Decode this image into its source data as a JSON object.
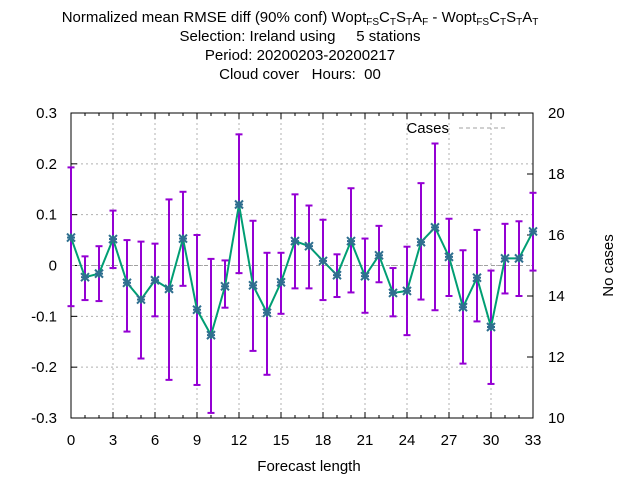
{
  "title": {
    "line1_prefix": "Normalized mean RMSE diff (90% conf) Wopt",
    "line1_parts": [
      {
        "sub": "FS"
      },
      {
        "text": "C"
      },
      {
        "sub": "T"
      },
      {
        "text": "S"
      },
      {
        "sub": "T"
      },
      {
        "text": "A"
      },
      {
        "sub": "F"
      },
      {
        "text": " - Wopt"
      },
      {
        "sub": "FS"
      },
      {
        "text": "C"
      },
      {
        "sub": "T"
      },
      {
        "text": "S"
      },
      {
        "sub": "T"
      },
      {
        "text": "A"
      },
      {
        "sub": "T"
      }
    ],
    "line2": "Selection: Ireland using     5 stations",
    "line3": "Period: 20200203-20200217",
    "line4": "Cloud cover   Hours:  00"
  },
  "chart_data": {
    "type": "line",
    "xlabel": "Forecast length",
    "ylabel_left": "",
    "ylabel_right": "No cases",
    "xlim": [
      0,
      33
    ],
    "ylim": [
      -0.3,
      0.3
    ],
    "y2lim": [
      10,
      20
    ],
    "xticks": [
      0,
      3,
      6,
      9,
      12,
      15,
      18,
      21,
      24,
      27,
      30,
      33
    ],
    "yticks": [
      -0.3,
      -0.2,
      -0.1,
      0,
      0.1,
      0.2,
      0.3
    ],
    "ytick_labels": [
      "-0.3",
      "-0.2",
      "-0.1",
      "0",
      "0.1",
      "0.2",
      "0.3"
    ],
    "y2ticks": [
      10,
      12,
      14,
      16,
      18,
      20
    ],
    "grid": true,
    "legend": {
      "position": "top-right",
      "entries": [
        "Cases"
      ]
    },
    "series": [
      {
        "name": "",
        "type": "errorbar-line",
        "x": [
          0,
          1,
          2,
          3,
          4,
          5,
          6,
          7,
          8,
          9,
          10,
          11,
          12,
          13,
          14,
          15,
          16,
          17,
          18,
          19,
          20,
          21,
          22,
          23,
          24,
          25,
          26,
          27,
          28,
          29,
          30,
          31,
          32,
          33
        ],
        "values": [
          0.055,
          -0.023,
          -0.016,
          0.052,
          -0.034,
          -0.067,
          -0.029,
          -0.046,
          0.053,
          -0.087,
          -0.137,
          -0.041,
          0.12,
          -0.039,
          -0.093,
          -0.033,
          0.048,
          0.038,
          0.009,
          -0.019,
          0.048,
          -0.021,
          0.02,
          -0.054,
          -0.05,
          0.046,
          0.075,
          0.017,
          -0.082,
          -0.024,
          -0.121,
          0.014,
          0.014,
          0.067
        ],
        "lower": [
          -0.08,
          -0.068,
          -0.07,
          -0.005,
          -0.13,
          -0.183,
          -0.1,
          -0.225,
          -0.04,
          -0.235,
          -0.29,
          -0.083,
          -0.015,
          -0.168,
          -0.215,
          -0.095,
          -0.045,
          -0.045,
          -0.068,
          -0.062,
          -0.053,
          -0.093,
          -0.033,
          -0.1,
          -0.137,
          -0.067,
          -0.088,
          -0.06,
          -0.193,
          -0.11,
          -0.233,
          -0.055,
          -0.06,
          -0.01
        ],
        "upper": [
          0.193,
          0.018,
          0.038,
          0.108,
          0.05,
          0.047,
          0.043,
          0.13,
          0.145,
          0.06,
          0.013,
          0.01,
          0.258,
          0.088,
          0.025,
          0.025,
          0.14,
          0.118,
          0.09,
          0.022,
          0.152,
          0.053,
          0.078,
          -0.005,
          0.037,
          0.162,
          0.24,
          0.092,
          0.03,
          0.07,
          -0.01,
          0.082,
          0.087,
          0.143
        ]
      },
      {
        "name": "Cases",
        "axis": "right",
        "values": [
          15,
          15,
          15,
          15,
          15,
          15,
          15,
          15,
          15,
          15,
          15,
          15,
          15,
          15,
          15,
          15,
          15,
          15,
          15,
          15,
          15,
          15,
          15,
          15,
          15,
          15,
          15,
          15,
          15,
          15,
          15,
          15,
          15,
          15
        ]
      }
    ]
  },
  "colors": {
    "line": "#009e73",
    "errorbar": "#9400d3",
    "marker": "#2f6f8f",
    "cases": "#a0a0a0",
    "grid": "#b0b0b0"
  }
}
